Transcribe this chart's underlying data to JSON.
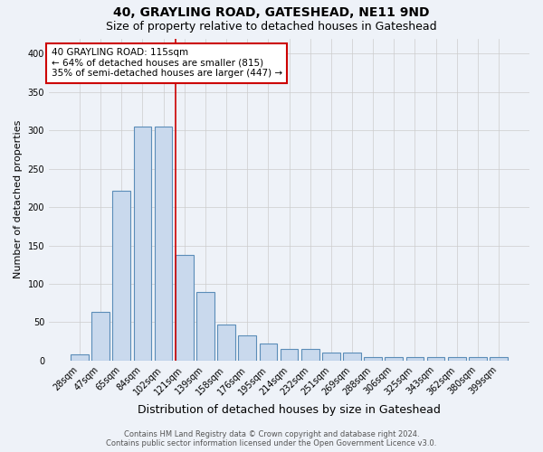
{
  "title": "40, GRAYLING ROAD, GATESHEAD, NE11 9ND",
  "subtitle": "Size of property relative to detached houses in Gateshead",
  "xlabel": "Distribution of detached houses by size in Gateshead",
  "ylabel": "Number of detached properties",
  "categories": [
    "28sqm",
    "47sqm",
    "65sqm",
    "84sqm",
    "102sqm",
    "121sqm",
    "139sqm",
    "158sqm",
    "176sqm",
    "195sqm",
    "214sqm",
    "232sqm",
    "251sqm",
    "269sqm",
    "288sqm",
    "306sqm",
    "325sqm",
    "343sqm",
    "362sqm",
    "380sqm",
    "399sqm"
  ],
  "values": [
    8,
    63,
    221,
    305,
    305,
    138,
    89,
    47,
    33,
    22,
    15,
    15,
    11,
    11,
    5,
    5,
    5,
    4,
    4,
    4,
    4
  ],
  "bar_color": "#c9d9ed",
  "bar_edge_color": "#5b8db8",
  "bar_edge_width": 0.8,
  "vline_x_index": 5,
  "vline_color": "#cc0000",
  "annotation_lines": [
    "40 GRAYLING ROAD: 115sqm",
    "← 64% of detached houses are smaller (815)",
    "35% of semi-detached houses are larger (447) →"
  ],
  "ylim": [
    0,
    420
  ],
  "yticks": [
    0,
    50,
    100,
    150,
    200,
    250,
    300,
    350,
    400
  ],
  "grid_color": "#cccccc",
  "background_color": "#eef2f8",
  "footer_line1": "Contains HM Land Registry data © Crown copyright and database right 2024.",
  "footer_line2": "Contains public sector information licensed under the Open Government Licence v3.0.",
  "title_fontsize": 10,
  "subtitle_fontsize": 9,
  "xlabel_fontsize": 9,
  "ylabel_fontsize": 8,
  "tick_fontsize": 7,
  "annotation_fontsize": 7.5,
  "footer_fontsize": 6
}
